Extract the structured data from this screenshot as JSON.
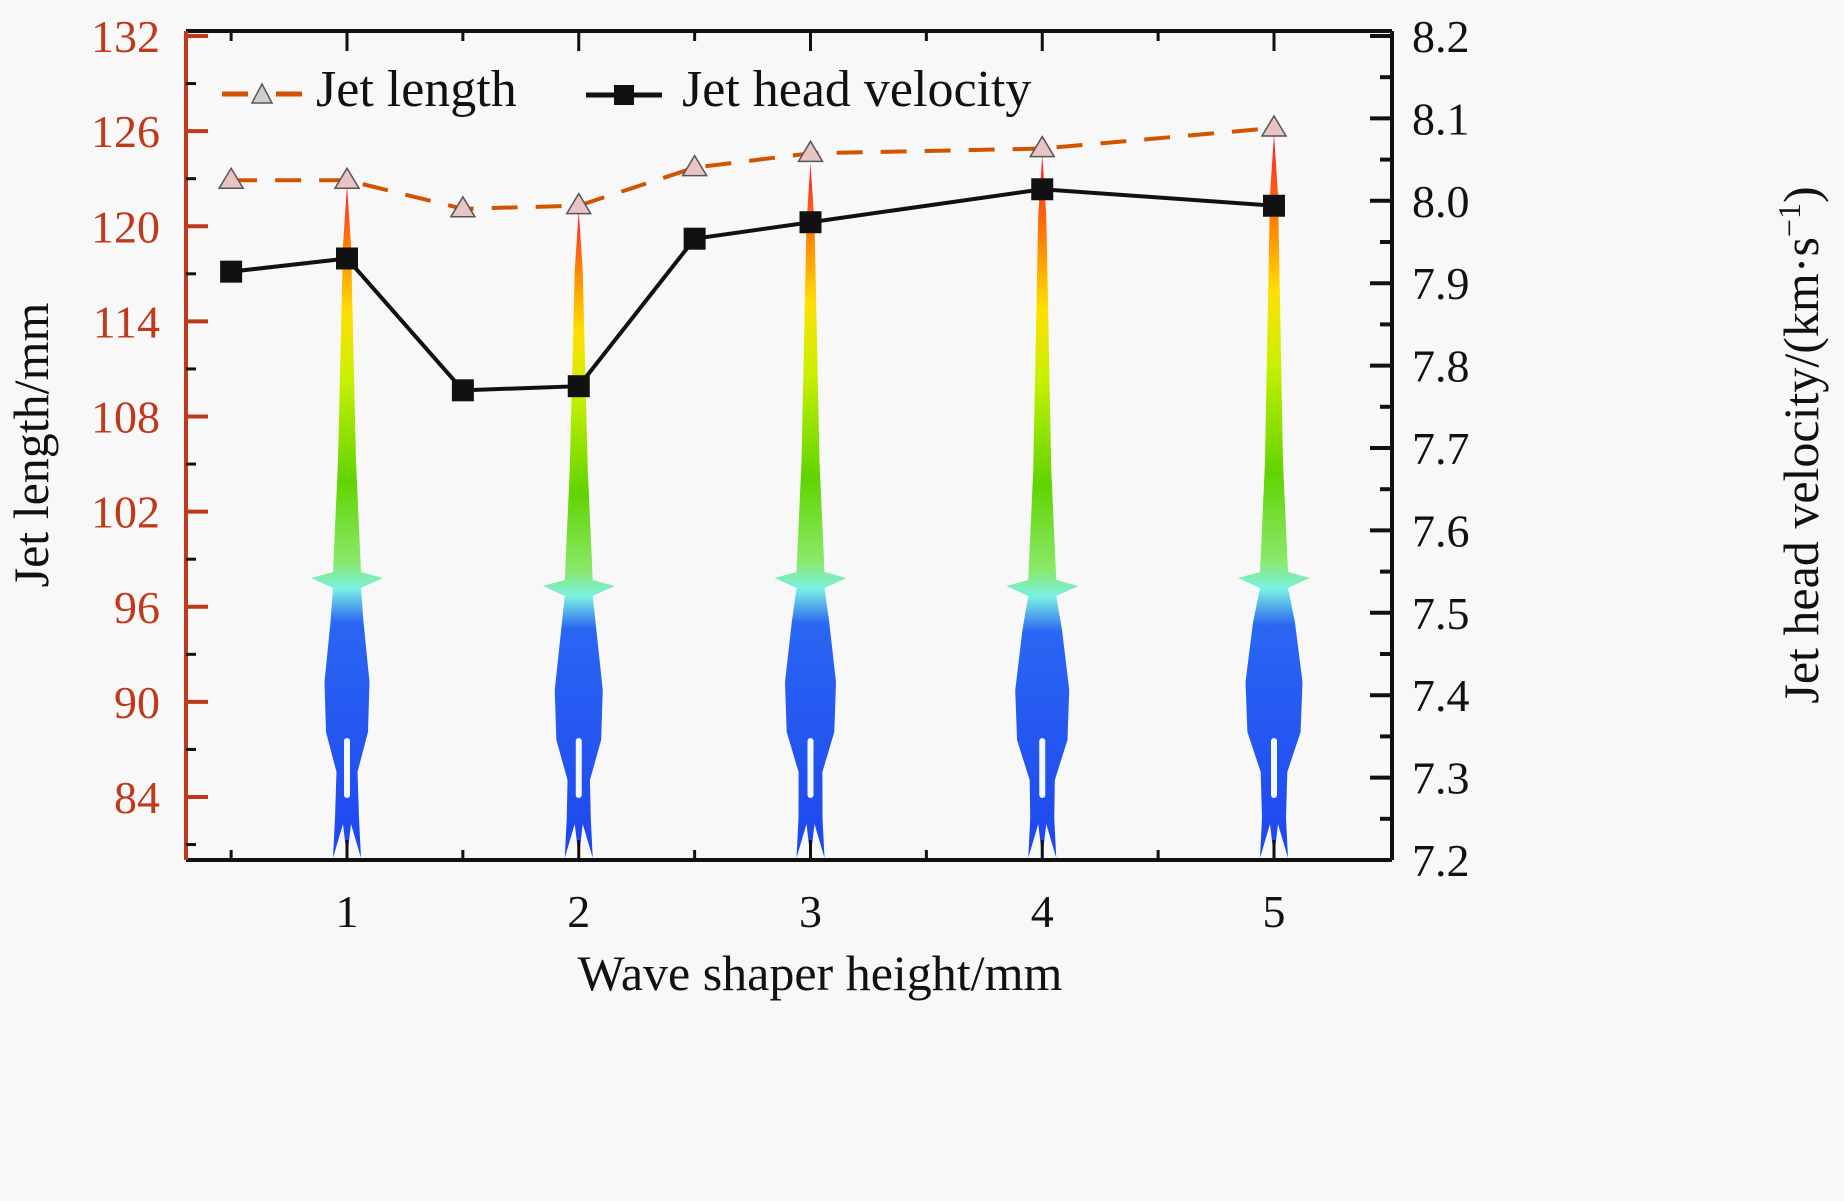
{
  "chart_data": {
    "type": "line",
    "title": "",
    "xlabel": "Wave shaper height/mm",
    "ylabel_left": "Jet length/mm",
    "ylabel_right": "Jet head velocity/(km·s⁻¹)",
    "ylabel_right_parts": {
      "main": "Jet head velocity/(km·s",
      "sup": "−1",
      "close": ")"
    },
    "xlim": [
      0.3,
      5.5
    ],
    "ylim_left": [
      80,
      132
    ],
    "ylim_right": [
      7.2,
      8.2
    ],
    "x_ticks": [
      1,
      2,
      3,
      4,
      5
    ],
    "x_tick_labels": [
      "1",
      "2",
      "3",
      "4",
      "5"
    ],
    "x_minor_ticks": [
      0.5,
      1.5,
      2.5,
      3.5,
      4.5
    ],
    "y_left_ticks": [
      84,
      90,
      96,
      102,
      108,
      114,
      120,
      126,
      132
    ],
    "y_left_tick_labels": [
      "84",
      "90",
      "96",
      "102",
      "108",
      "114",
      "120",
      "126",
      "132"
    ],
    "y_right_ticks": [
      7.2,
      7.3,
      7.4,
      7.5,
      7.6,
      7.7,
      7.8,
      7.9,
      8.0,
      8.1,
      8.2
    ],
    "y_right_tick_labels": [
      "7.2",
      "7.3",
      "7.4",
      "7.5",
      "7.6",
      "7.7",
      "7.8",
      "7.9",
      "8.0",
      "8.1",
      "8.2"
    ],
    "grid": false,
    "legend_position": "top-left",
    "x": [
      0.5,
      1,
      1.5,
      2,
      2.5,
      3,
      4,
      5
    ],
    "series": [
      {
        "name": "Jet length",
        "axis": "left",
        "marker": "triangle",
        "line_style": "dashed",
        "color": "#d35400",
        "marker_fill": "#e8c4c4",
        "values": [
          122.9,
          122.9,
          121.1,
          121.3,
          123.7,
          124.6,
          124.9,
          126.2
        ]
      },
      {
        "name": "Jet head velocity",
        "axis": "right",
        "marker": "square",
        "line_style": "solid",
        "color": "#111111",
        "marker_fill": "#111111",
        "values": [
          7.914,
          7.93,
          7.77,
          7.775,
          7.954,
          7.974,
          8.014,
          7.994
        ]
      }
    ],
    "annotations": [
      {
        "type": "jet-simulation-image",
        "at_x": 1,
        "tip_length": 122.6
      },
      {
        "type": "jet-simulation-image",
        "at_x": 2,
        "tip_length": 121.0
      },
      {
        "type": "jet-simulation-image",
        "at_x": 3,
        "tip_length": 124.0
      },
      {
        "type": "jet-simulation-image",
        "at_x": 4,
        "tip_length": 124.5
      },
      {
        "type": "jet-simulation-image",
        "at_x": 5,
        "tip_length": 125.8
      }
    ]
  },
  "colors": {
    "left_axis": "#c0391b",
    "axis": "#111111",
    "jet_length_line": "#d35400",
    "velocity_line": "#111111"
  }
}
